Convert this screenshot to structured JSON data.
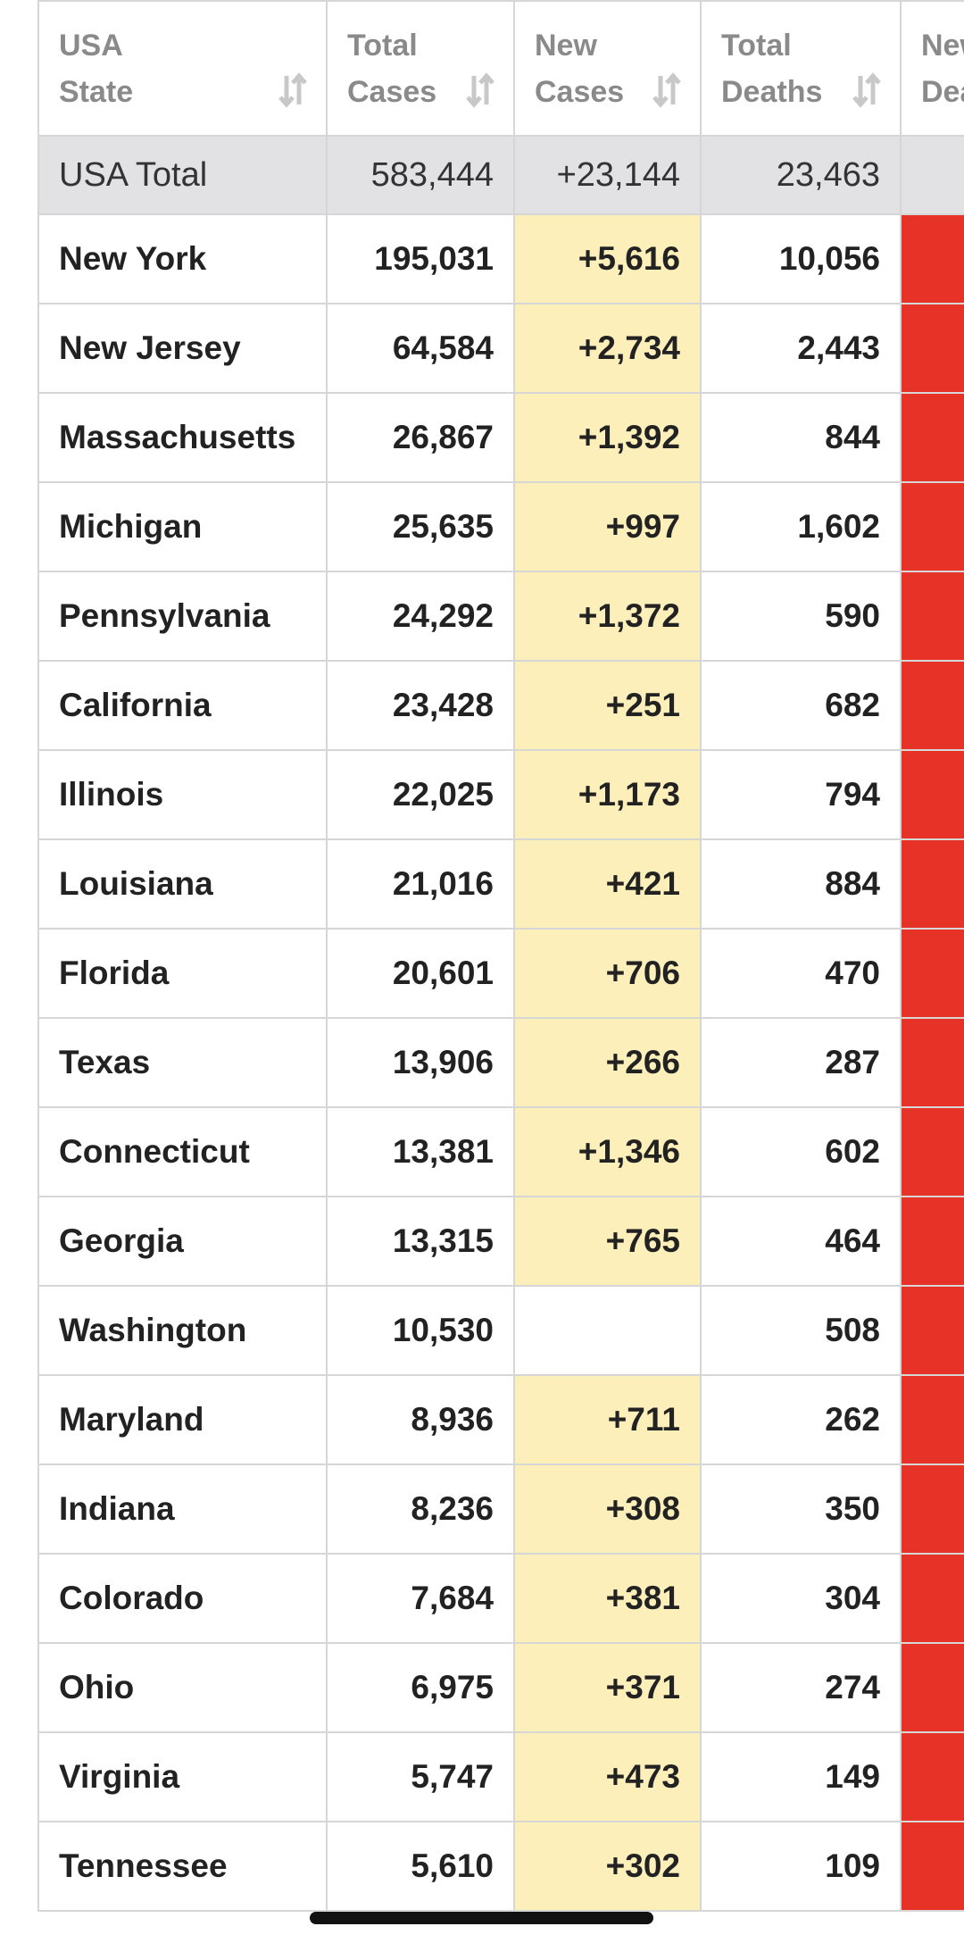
{
  "table": {
    "columns": [
      "USA State",
      "Total Cases",
      "New Cases",
      "Total Deaths",
      "New Deaths"
    ],
    "total": [
      "USA Total",
      "583,444",
      "+23,144",
      "23,463"
    ],
    "rows": [
      [
        "New York",
        "195,031",
        "+5,616",
        "10,056"
      ],
      [
        "New Jersey",
        "64,584",
        "+2,734",
        "2,443"
      ],
      [
        "Massachusetts",
        "26,867",
        "+1,392",
        "844"
      ],
      [
        "Michigan",
        "25,635",
        "+997",
        "1,602"
      ],
      [
        "Pennsylvania",
        "24,292",
        "+1,372",
        "590"
      ],
      [
        "California",
        "23,428",
        "+251",
        "682"
      ],
      [
        "Illinois",
        "22,025",
        "+1,173",
        "794"
      ],
      [
        "Louisiana",
        "21,016",
        "+421",
        "884"
      ],
      [
        "Florida",
        "20,601",
        "+706",
        "470"
      ],
      [
        "Texas",
        "13,906",
        "+266",
        "287"
      ],
      [
        "Connecticut",
        "13,381",
        "+1,346",
        "602"
      ],
      [
        "Georgia",
        "13,315",
        "+765",
        "464"
      ],
      [
        "Washington",
        "10,530",
        null,
        "508"
      ],
      [
        "Maryland",
        "8,936",
        "+711",
        "262"
      ],
      [
        "Indiana",
        "8,236",
        "+308",
        "350"
      ],
      [
        "Colorado",
        "7,684",
        "+381",
        "304"
      ],
      [
        "Ohio",
        "6,975",
        "+371",
        "274"
      ],
      [
        "Virginia",
        "5,747",
        "+473",
        "149"
      ],
      [
        "Tennessee",
        "5,610",
        "+302",
        "109"
      ]
    ]
  }
}
